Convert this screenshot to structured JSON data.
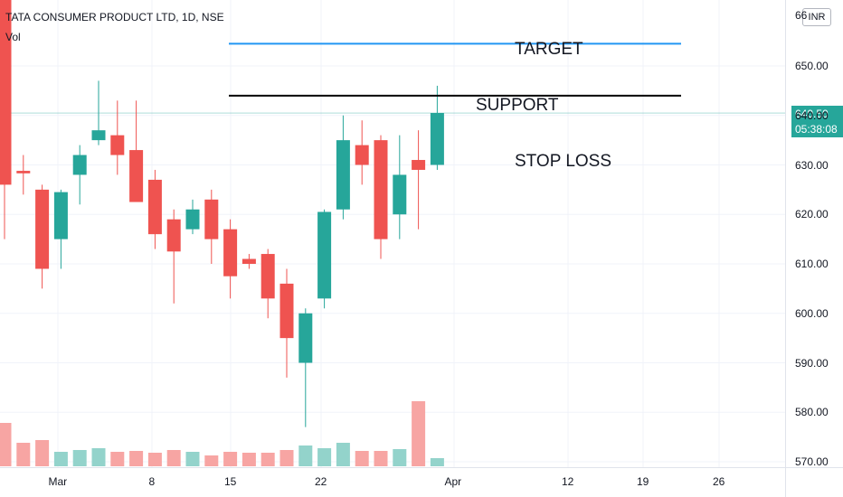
{
  "header": {
    "title": "TATA CONSUMER PRODUCT LTD, 1D, NSE",
    "volume_label": "Vol"
  },
  "currency_button": "INR",
  "price_axis_partial_label": "66",
  "last_price": {
    "value": "640.50",
    "countdown": "05:38:08",
    "color": "#26a69a"
  },
  "annotations": {
    "target": "TARGET",
    "support": "SUPPORT",
    "stop_loss": "STOP LOSS"
  },
  "colors": {
    "up": "#26a69a",
    "down": "#ef5350",
    "vol_up": "#93d3cb",
    "vol_down": "#f7a5a3",
    "target_line": "#2196f3",
    "support_line": "#000000"
  },
  "chart_data": {
    "type": "candlestick",
    "title": "TATA CONSUMER PRODUCT LTD, 1D, NSE",
    "y_ticks": [
      "650.00",
      "640.00",
      "630.00",
      "620.00",
      "610.00",
      "600.00",
      "590.00",
      "580.00",
      "570.00"
    ],
    "ylim": [
      569,
      665
    ],
    "x_ticks": [
      "Mar",
      "8",
      "15",
      "22",
      "Apr",
      "12",
      "19",
      "26"
    ],
    "candles": [
      {
        "o": 664,
        "h": 664,
        "l": 615,
        "c": 626
      },
      {
        "o": 628.8,
        "h": 632,
        "l": 624,
        "c": 628.3
      },
      {
        "o": 625,
        "h": 626,
        "l": 605,
        "c": 609
      },
      {
        "o": 615,
        "h": 625,
        "l": 609,
        "c": 624.5
      },
      {
        "o": 628,
        "h": 634,
        "l": 622,
        "c": 632
      },
      {
        "o": 635,
        "h": 647,
        "l": 634,
        "c": 637
      },
      {
        "o": 636,
        "h": 643,
        "l": 628,
        "c": 632
      },
      {
        "o": 633,
        "h": 643,
        "l": 623,
        "c": 622.5
      },
      {
        "o": 627,
        "h": 629,
        "l": 613,
        "c": 616
      },
      {
        "o": 619,
        "h": 621,
        "l": 602,
        "c": 612.5
      },
      {
        "o": 617,
        "h": 623,
        "l": 616,
        "c": 621
      },
      {
        "o": 623,
        "h": 625,
        "l": 610,
        "c": 615
      },
      {
        "o": 617,
        "h": 619,
        "l": 603,
        "c": 607.5
      },
      {
        "o": 611,
        "h": 612,
        "l": 609,
        "c": 610
      },
      {
        "o": 612,
        "h": 613,
        "l": 599,
        "c": 603
      },
      {
        "o": 606,
        "h": 609,
        "l": 587,
        "c": 595
      },
      {
        "o": 590,
        "h": 601,
        "l": 577,
        "c": 600
      },
      {
        "o": 603,
        "h": 621,
        "l": 601,
        "c": 620.5
      },
      {
        "o": 621,
        "h": 640,
        "l": 619,
        "c": 635
      },
      {
        "o": 634,
        "h": 639,
        "l": 626,
        "c": 630
      },
      {
        "o": 635,
        "h": 636,
        "l": 611,
        "c": 615
      },
      {
        "o": 620,
        "h": 636,
        "l": 615,
        "c": 628
      },
      {
        "o": 631,
        "h": 637,
        "l": 617,
        "c": 629
      },
      {
        "o": 630,
        "h": 646,
        "l": 629,
        "c": 640.5
      }
    ],
    "volume_level": [
      0.48,
      0.26,
      0.29,
      0.16,
      0.18,
      0.2,
      0.16,
      0.17,
      0.15,
      0.18,
      0.16,
      0.12,
      0.16,
      0.15,
      0.15,
      0.18,
      0.23,
      0.2,
      0.26,
      0.17,
      0.17,
      0.19,
      0.72,
      0.09
    ],
    "target_level": 654.5,
    "support_level": 644,
    "last_price": 640.5
  }
}
